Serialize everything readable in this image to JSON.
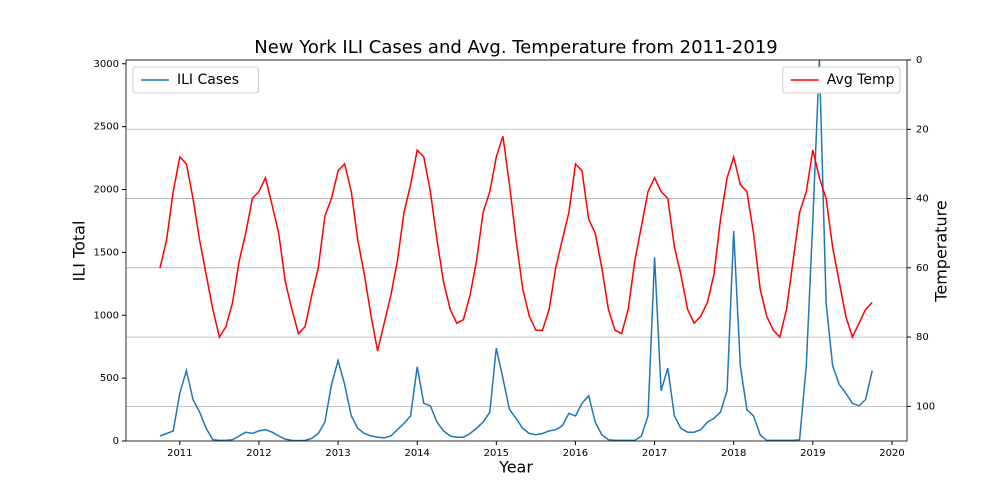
{
  "chart_data": {
    "type": "line",
    "title": "New York ILI Cases and Avg. Temperature from 2011-2019",
    "xlabel": "Year",
    "ylabel": "ILI Total",
    "y2label": "Temperature",
    "x": [
      2010.75,
      2010.833,
      2010.917,
      2011.0,
      2011.083,
      2011.167,
      2011.25,
      2011.333,
      2011.417,
      2011.5,
      2011.583,
      2011.667,
      2011.75,
      2011.833,
      2011.917,
      2012.0,
      2012.083,
      2012.167,
      2012.25,
      2012.333,
      2012.417,
      2012.5,
      2012.583,
      2012.667,
      2012.75,
      2012.833,
      2012.917,
      2013.0,
      2013.083,
      2013.167,
      2013.25,
      2013.333,
      2013.417,
      2013.5,
      2013.583,
      2013.667,
      2013.75,
      2013.833,
      2013.917,
      2014.0,
      2014.083,
      2014.167,
      2014.25,
      2014.333,
      2014.417,
      2014.5,
      2014.583,
      2014.667,
      2014.75,
      2014.833,
      2014.917,
      2015.0,
      2015.083,
      2015.167,
      2015.25,
      2015.333,
      2015.417,
      2015.5,
      2015.583,
      2015.667,
      2015.75,
      2015.833,
      2015.917,
      2016.0,
      2016.083,
      2016.167,
      2016.25,
      2016.333,
      2016.417,
      2016.5,
      2016.583,
      2016.667,
      2016.75,
      2016.833,
      2016.917,
      2017.0,
      2017.083,
      2017.167,
      2017.25,
      2017.333,
      2017.417,
      2017.5,
      2017.583,
      2017.667,
      2017.75,
      2017.833,
      2017.917,
      2018.0,
      2018.083,
      2018.167,
      2018.25,
      2018.333,
      2018.417,
      2018.5,
      2018.583,
      2018.667,
      2018.75,
      2018.833,
      2018.917,
      2019.0,
      2019.083,
      2019.167,
      2019.25,
      2019.333,
      2019.417,
      2019.5,
      2019.583,
      2019.667,
      2019.75
    ],
    "series": [
      {
        "name": "ILI Cases",
        "color": "#1f77b4",
        "values": [
          40,
          60,
          80,
          380,
          560,
          330,
          230,
          100,
          10,
          5,
          5,
          10,
          40,
          70,
          60,
          80,
          90,
          70,
          40,
          15,
          5,
          3,
          5,
          20,
          60,
          150,
          450,
          640,
          450,
          200,
          100,
          60,
          40,
          30,
          25,
          40,
          90,
          140,
          200,
          590,
          300,
          280,
          150,
          80,
          40,
          30,
          30,
          60,
          100,
          150,
          230,
          740,
          500,
          250,
          180,
          100,
          60,
          50,
          60,
          80,
          90,
          120,
          220,
          200,
          300,
          360,
          150,
          50,
          10,
          5,
          5,
          5,
          5,
          40,
          200,
          1460,
          400,
          580,
          200,
          100,
          70,
          70,
          90,
          150,
          180,
          230,
          400,
          1670,
          600,
          250,
          200,
          50,
          5,
          5,
          5,
          5,
          5,
          10,
          600,
          1750,
          3030,
          1100,
          600,
          450,
          380,
          300,
          280,
          330,
          560
        ]
      },
      {
        "name": "Avg Temp",
        "color": "#ff0000",
        "axis": "y2",
        "values": [
          60,
          52,
          38,
          28,
          30,
          40,
          52,
          62,
          72,
          80,
          77,
          70,
          58,
          50,
          40,
          38,
          34,
          42,
          50,
          64,
          72,
          79,
          77,
          68,
          60,
          45,
          40,
          32,
          30,
          38,
          52,
          62,
          74,
          84,
          76,
          68,
          58,
          44,
          36,
          26,
          28,
          38,
          52,
          64,
          72,
          76,
          75,
          68,
          58,
          44,
          38,
          28,
          22,
          36,
          52,
          66,
          74,
          78,
          78,
          72,
          60,
          52,
          44,
          30,
          32,
          46,
          50,
          60,
          72,
          78,
          79,
          72,
          58,
          48,
          38,
          34,
          38,
          40,
          54,
          62,
          72,
          76,
          74,
          70,
          62,
          46,
          34,
          28,
          36,
          38,
          50,
          66,
          74,
          78,
          80,
          72,
          58,
          44,
          38,
          26,
          34,
          40,
          54,
          64,
          74,
          80,
          76,
          72,
          70
        ]
      }
    ],
    "xlim": [
      2010.32,
      2020.19
    ],
    "xticks": [
      2011,
      2012,
      2013,
      2014,
      2015,
      2016,
      2017,
      2018,
      2019,
      2020
    ],
    "ylim": [
      0,
      3030
    ],
    "yticks": [
      0,
      500,
      1000,
      1500,
      2000,
      2500,
      3000
    ],
    "y2lim": [
      110,
      0
    ],
    "y2ticks": [
      0,
      20,
      40,
      60,
      80,
      100
    ],
    "y2grid": true,
    "legend": "upper left",
    "legend2": "upper right"
  }
}
